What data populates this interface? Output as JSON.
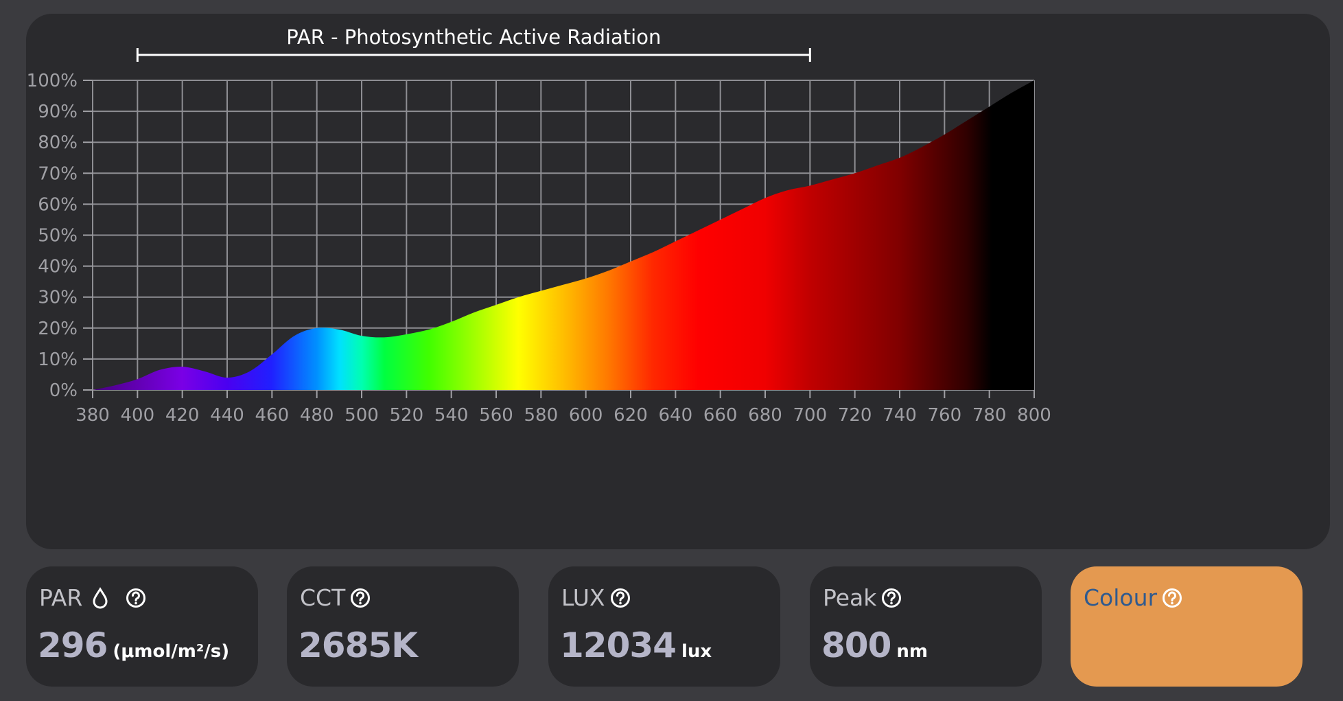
{
  "chart_data": {
    "type": "area",
    "title": "PAR - Photosynthetic Active Radiation",
    "par_range": [
      400,
      700
    ],
    "x_ticks": [
      "380",
      "400",
      "420",
      "440",
      "460",
      "480",
      "500",
      "520",
      "540",
      "560",
      "580",
      "600",
      "620",
      "640",
      "660",
      "680",
      "700",
      "720",
      "740",
      "760",
      "780",
      "800"
    ],
    "y_ticks": [
      "0%",
      "10%",
      "20%",
      "30%",
      "40%",
      "50%",
      "60%",
      "70%",
      "80%",
      "90%",
      "100%"
    ],
    "xlim": [
      380,
      800
    ],
    "ylim": [
      0,
      100
    ],
    "grid": true,
    "x": [
      380,
      390,
      400,
      410,
      420,
      430,
      440,
      450,
      460,
      470,
      480,
      490,
      500,
      510,
      520,
      530,
      540,
      550,
      560,
      570,
      580,
      590,
      600,
      610,
      620,
      630,
      640,
      650,
      660,
      670,
      680,
      690,
      700,
      710,
      720,
      730,
      740,
      750,
      760,
      770,
      780,
      790,
      800
    ],
    "y": [
      0,
      1.5,
      3.5,
      6.5,
      7.5,
      6,
      4,
      6,
      11.5,
      17.5,
      20,
      19.5,
      17.5,
      17,
      18,
      19.5,
      22,
      25,
      27.5,
      30,
      32,
      34,
      36,
      38.5,
      41.5,
      44.5,
      48,
      51.5,
      55,
      58.5,
      62,
      64.5,
      66,
      68,
      70,
      72.5,
      75,
      78.5,
      82.5,
      87,
      91.5,
      96,
      100
    ]
  },
  "cards": [
    {
      "title": "PAR",
      "value": "296",
      "unit": "(μmol/m²/s)",
      "icons": [
        "drop-icon",
        "help-icon"
      ]
    },
    {
      "title": "CCT",
      "value": "2685K",
      "unit": "",
      "icons": [
        "help-icon"
      ]
    },
    {
      "title": "LUX",
      "value": "12034",
      "unit": "lux",
      "icons": [
        "help-icon"
      ]
    },
    {
      "title": "Peak",
      "value": "800",
      "unit": "nm",
      "icons": [
        "help-icon"
      ]
    },
    {
      "title": "Colour",
      "value": "",
      "unit": "",
      "icons": [
        "help-icon"
      ],
      "color": "#e49950"
    }
  ],
  "colors": {
    "background": "#3b3b3f",
    "panel": "#2a2a2d",
    "card": "#29292c",
    "colour_swatch": "#e49950",
    "colour_title": "#2f5a8f",
    "grid": "#8e8e93"
  }
}
